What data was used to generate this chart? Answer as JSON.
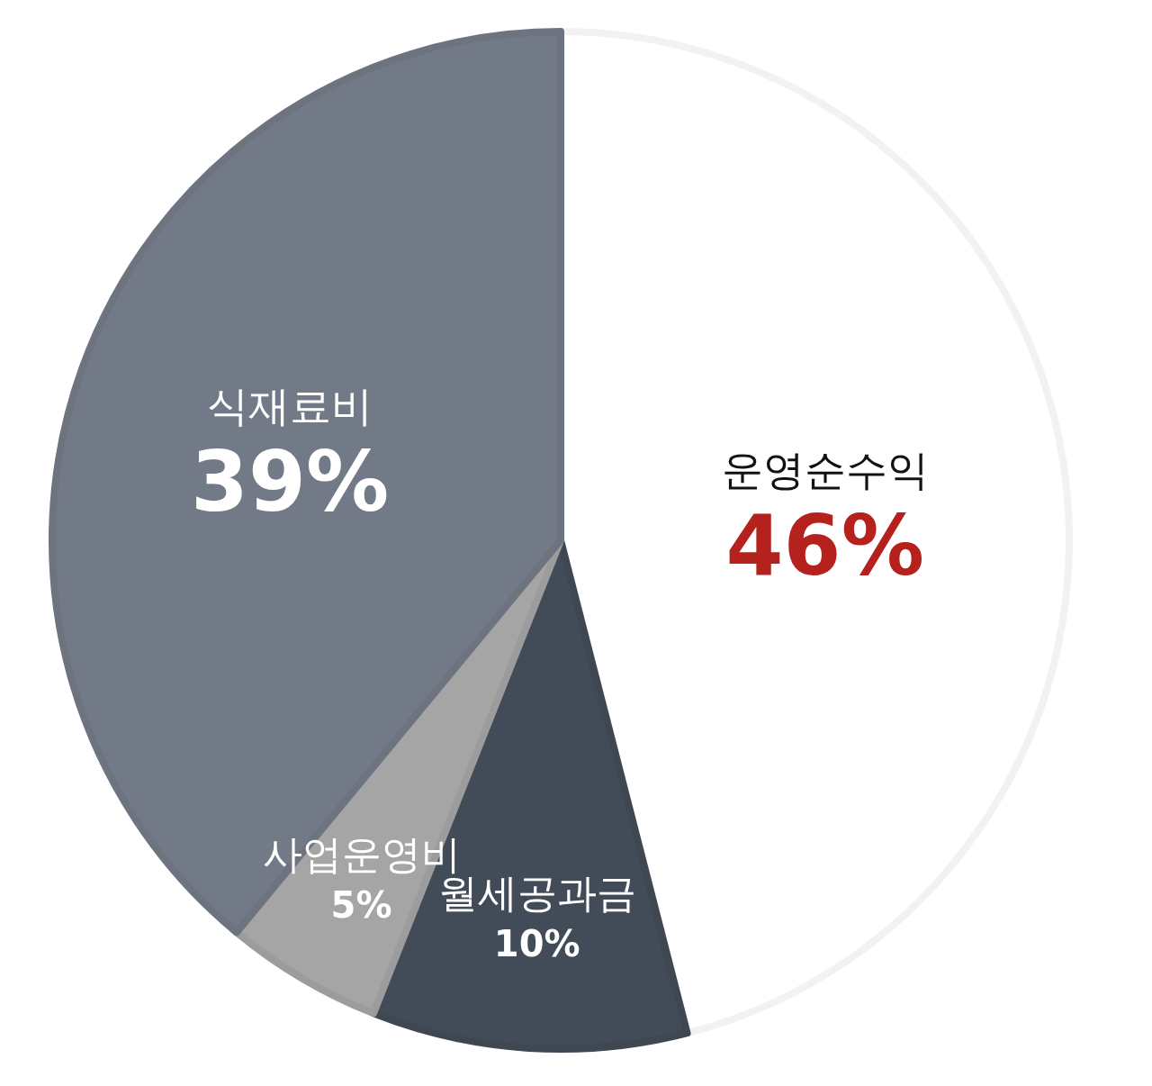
{
  "chart_data": {
    "type": "pie",
    "categories": [
      "운영순수익",
      "월세공과금",
      "사업운영비",
      "식재료비"
    ],
    "values": [
      46,
      10,
      5,
      39
    ],
    "colors": [
      "#ffffff",
      "#424b58",
      "#a5a5a5",
      "#737a87"
    ],
    "value_labels": [
      "46%",
      "10%",
      "5%",
      "39%"
    ]
  }
}
